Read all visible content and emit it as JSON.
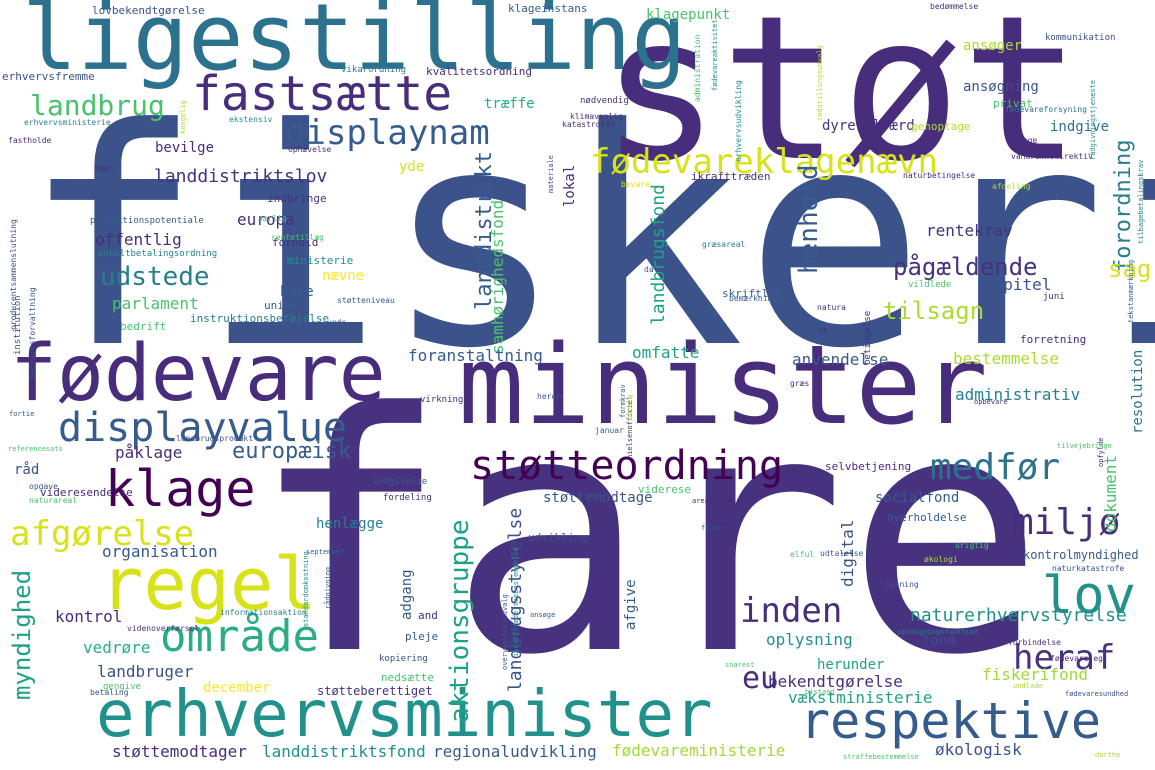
{
  "colors": {
    "background": "#ffffff",
    "palette_name": "viridis"
  },
  "words": [
    "fiskeri",
    "fare",
    "støt",
    "minister",
    "ligestilling",
    "fødevare",
    "erhvervsminister",
    "regel",
    "fastsætte",
    "respektive",
    "klage",
    "displayvalue",
    "støtteordning",
    "displaynam",
    "fødevareklagenævn",
    "lov",
    "område",
    "medfør",
    "miljø",
    "afgørelse",
    "inden",
    "heraf",
    "landbrug",
    "aktionsgruppe",
    "myndighed",
    "landdistrikt",
    "europæisk",
    "henhold",
    "forordning",
    "landdistriktslov",
    "udstede",
    "tilsagn",
    "pågældende",
    "sag",
    "landbrugsfond",
    "landbrugsstyrelse",
    "naturerhvervstyrelse",
    "samhørighedsfond",
    "eu",
    "påklage",
    "foranstaltning",
    "offentlig",
    "europa",
    "kapitel",
    "rentekrav",
    "administrativ",
    "dokument",
    "oplysning",
    "bekendtgørelse",
    "fiskerifond",
    "vækstministerie",
    "fødevareministerie",
    "økologisk",
    "støttemodtager",
    "landdistriktsfond",
    "regionaludvikling",
    "landbruger",
    "kontrol",
    "vedrøre",
    "parlament",
    "organisation",
    "omfatte",
    "anvendelse",
    "bestemmelse",
    "digital",
    "afgive",
    "adgang",
    "henlægge",
    "socialfond",
    "kontrolmyndighed",
    "fond",
    "herunder",
    "december",
    "støtteberettiget",
    "resolution",
    "lokal",
    "indgive",
    "ansøgning",
    "ansøger",
    "dyrevelfærd",
    "klagepunkt",
    "træffe",
    "kvalitetsordning",
    "lovbekendtgørelse",
    "klageinstans",
    "erhvervsfremme",
    "vikarordning",
    "instruktionsbeføjelse",
    "viderese ndelse",
    "viderese",
    "videresendelse",
    "ikrafttræden",
    "bevilge",
    "yde",
    "indbringe",
    "forhold",
    "ministerie",
    "nævne",
    "høre",
    "union",
    "råd",
    "selvbetjening",
    "kommunikation",
    "privat",
    "fødevareforsyning",
    "rådgivningstjeneste",
    "udvikling",
    "overholdelse",
    "støttemodtage",
    "bedrift",
    "pleje",
    "kopiering",
    "nedsætte",
    "betaling",
    "gengive",
    "institution",
    "bedriftsforvaltning",
    "landbrugsprodukt",
    "opgave",
    "naturareal",
    "referencesats",
    "fortie",
    "virkning",
    "herom",
    "formkrav",
    "januar",
    "nielsenofficiel",
    "opbevare",
    "vildlede",
    "bemærkning",
    "skriftlig",
    "natura",
    "ck",
    "betingelse",
    "juni",
    "forretning",
    "tekstanmærkning",
    "dato",
    "græsareal",
    "støtteniveau",
    "unde",
    "enkeltbetalingsordning",
    "produktionspotentiale",
    "producentsammenslutning",
    "særlig",
    "rentetillæg",
    "bevare",
    "afdeling",
    "naturbetingelse",
    "tilbagebetalingskrav",
    "vandrammedirektiv",
    "sage",
    "genoptage",
    "nødvendig",
    "klimavenlig",
    "katastrofal",
    "erhvervsministerie",
    "ekstensiv",
    "fastholde",
    "ophævelse",
    "nævn",
    "kongelig",
    "administration",
    "fødevareaktivitet",
    "erhvervsudvikling",
    "indstillingsudvalg",
    "bedømmelse",
    "opfylde",
    "tilvejebringe",
    "arealtilskud",
    "urigtig",
    "økologi",
    "naturkatastrofe",
    "elful",
    "udtalelse",
    "læsning",
    "fødevarejeg",
    "forbindelse",
    "opfølgningsfunktion",
    "bistand",
    "undlade",
    "fødevaresundhed",
    "straffebestemmelse",
    "dorthe",
    "snarest",
    "finde",
    "ansøge",
    "and",
    "september",
    "standardomkostning",
    "rådgivning",
    "informationsaktion",
    "videnoverførsel",
    "overvågningsudvalg",
    "ikrafttrædelsesbestemmelse",
    "indgivelse",
    "fordeling",
    "græs",
    "udvalg",
    "materiale"
  ]
}
